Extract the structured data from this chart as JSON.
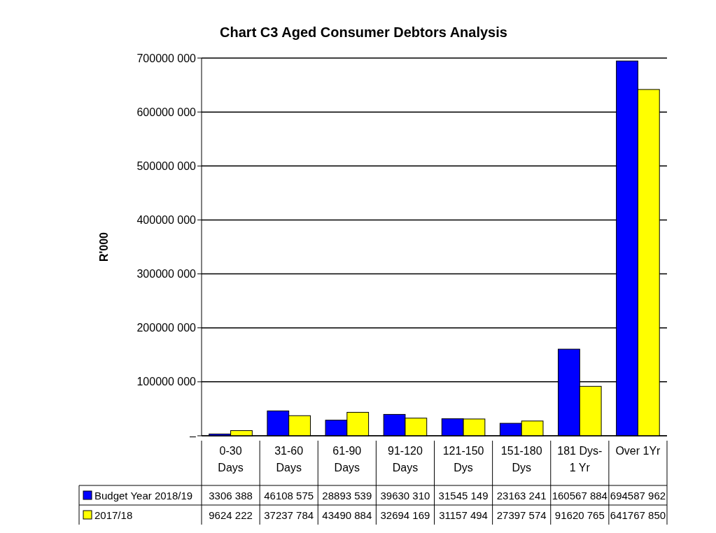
{
  "chart_data": {
    "type": "bar",
    "title": "Chart C3 Aged Consumer Debtors Analysis",
    "ylabel": "R'000",
    "categories": [
      "0-30\nDays",
      "31-60\nDays",
      "61-90\nDays",
      "91-120\nDays",
      "121-150\nDys",
      "151-180\nDys",
      "181 Dys-\n1 Yr",
      "Over 1Yr"
    ],
    "series": [
      {
        "name": "Budget Year 2018/19",
        "color": "#0000ff",
        "values": [
          3306388,
          46108575,
          28893539,
          39630310,
          31545149,
          23163241,
          160567884,
          694587962
        ],
        "value_labels": [
          "3306 388",
          "46108 575",
          "28893 539",
          "39630 310",
          "31545 149",
          "23163 241",
          "160567 884",
          "694587 962"
        ]
      },
      {
        "name": "2017/18",
        "color": "#ffff00",
        "values": [
          9624222,
          37237784,
          43490884,
          32694169,
          31157494,
          27397574,
          91620765,
          641767850
        ],
        "value_labels": [
          "9624 222",
          "37237 784",
          "43490 884",
          "32694 169",
          "31157 494",
          "27397 574",
          "91620 765",
          "641767 850"
        ]
      }
    ],
    "ylim": [
      0,
      700000000
    ],
    "yticks": [
      {
        "value": 0,
        "label": "–"
      },
      {
        "value": 100000000,
        "label": "100000 000"
      },
      {
        "value": 200000000,
        "label": "200000 000"
      },
      {
        "value": 300000000,
        "label": "300000 000"
      },
      {
        "value": 400000000,
        "label": "400000 000"
      },
      {
        "value": 500000000,
        "label": "500000 000"
      },
      {
        "value": 600000000,
        "label": "600000 000"
      },
      {
        "value": 700000000,
        "label": "700000 000"
      }
    ],
    "grid": "y",
    "legend": "bottom"
  }
}
